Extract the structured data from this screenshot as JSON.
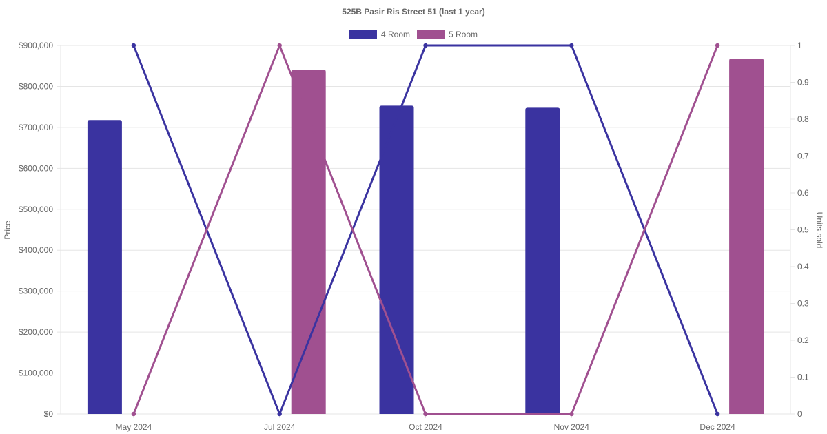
{
  "chart_data": {
    "type": "bar+line",
    "title": "525B Pasir Ris Street 51 (last 1 year)",
    "categories": [
      "May 2024",
      "Jul 2024",
      "Oct 2024",
      "Nov 2024",
      "Dec 2024"
    ],
    "legend": [
      {
        "name": "4 Room",
        "color": "#3a33a0"
      },
      {
        "name": "5 Room",
        "color": "#a05090"
      }
    ],
    "legend_position": "top-center",
    "grid": true,
    "y_left": {
      "label": "Price",
      "ylim": [
        0,
        900000
      ],
      "ticks": [
        0,
        100000,
        200000,
        300000,
        400000,
        500000,
        600000,
        700000,
        800000,
        900000
      ],
      "tick_labels": [
        "$0",
        "$100,000",
        "$200,000",
        "$300,000",
        "$400,000",
        "$500,000",
        "$600,000",
        "$700,000",
        "$800,000",
        "$900,000"
      ]
    },
    "y_right": {
      "label": "Units sold",
      "ylim": [
        0,
        1
      ],
      "ticks": [
        0,
        0.1,
        0.2,
        0.3,
        0.4,
        0.5,
        0.6,
        0.7,
        0.8,
        0.9,
        1
      ],
      "tick_labels": [
        "0",
        "0.1",
        "0.2",
        "0.3",
        "0.4",
        "0.5",
        "0.6",
        "0.7",
        "0.8",
        "0.9",
        "1"
      ]
    },
    "bar_series": [
      {
        "name": "4 Room",
        "color": "#3a33a0",
        "axis": "left",
        "values": [
          718000,
          null,
          753000,
          748000,
          null
        ]
      },
      {
        "name": "5 Room",
        "color": "#a05090",
        "axis": "left",
        "values": [
          null,
          841000,
          null,
          null,
          868000
        ]
      }
    ],
    "line_series": [
      {
        "name": "4 Room",
        "color": "#3a33a0",
        "axis": "right",
        "values": [
          1,
          0,
          1,
          1,
          0
        ]
      },
      {
        "name": "5 Room",
        "color": "#a05090",
        "axis": "right",
        "values": [
          0,
          1,
          0,
          0,
          1
        ]
      }
    ]
  }
}
